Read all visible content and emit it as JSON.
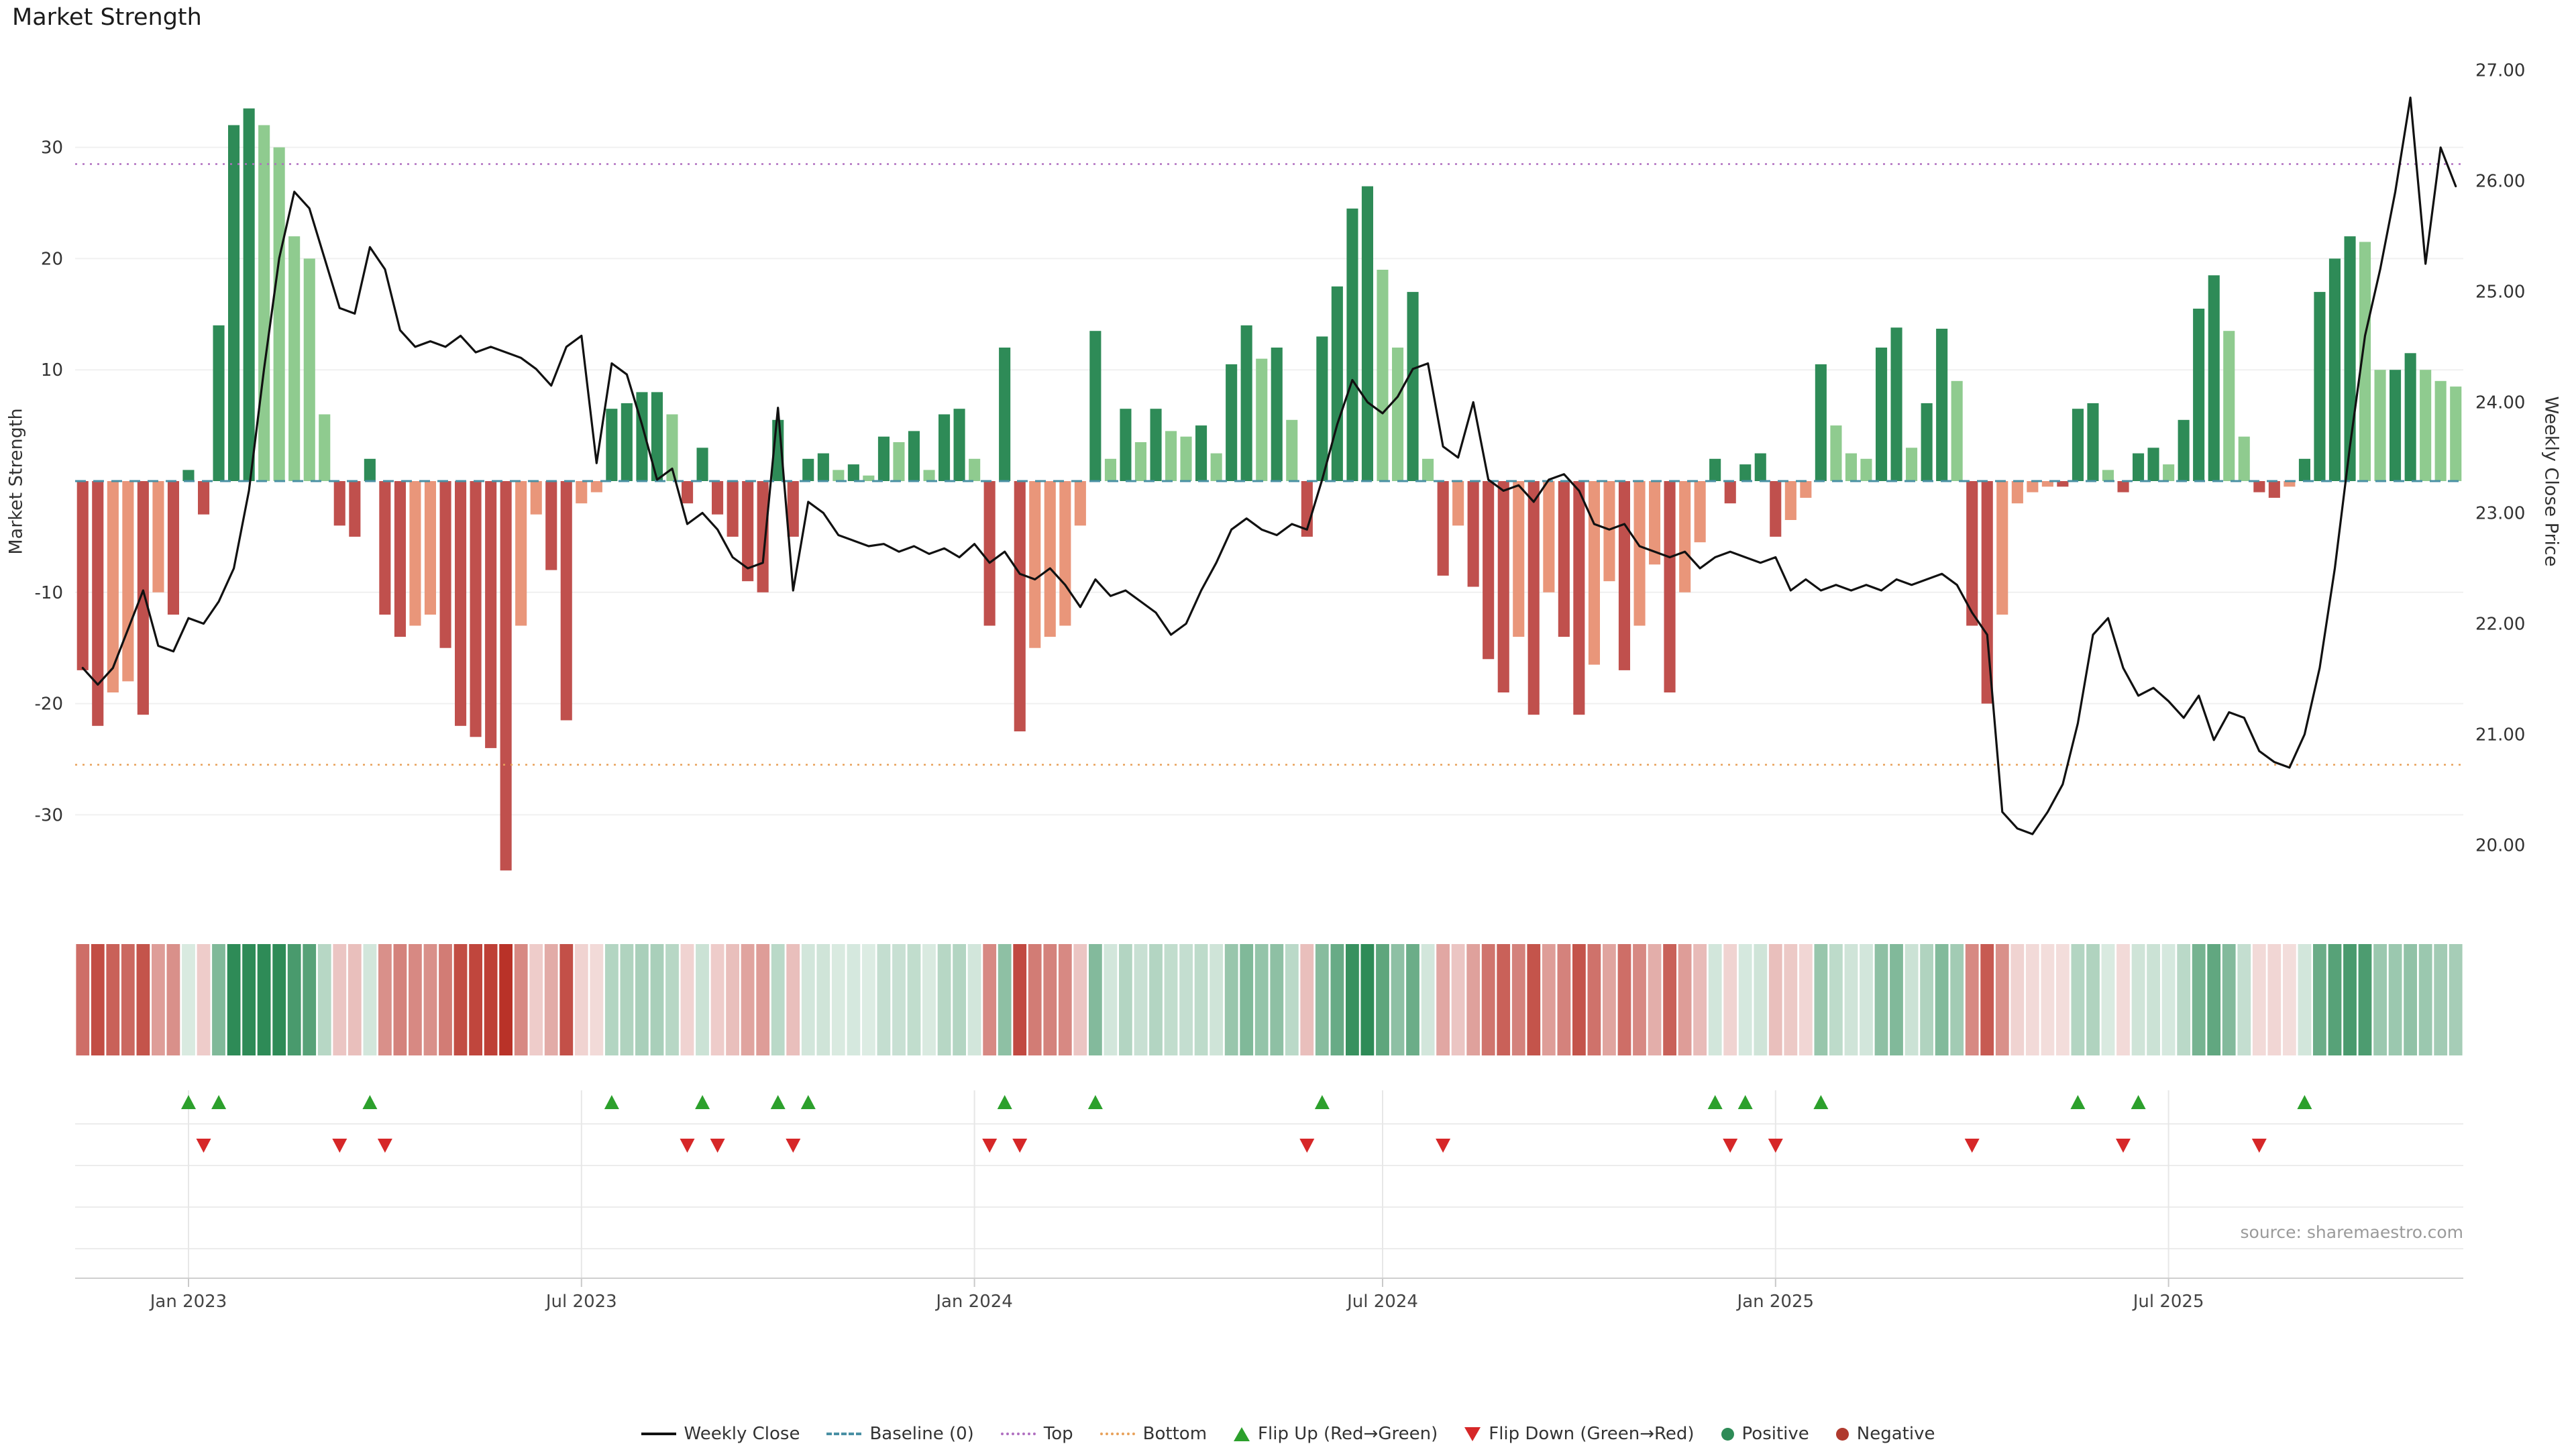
{
  "chart_data": {
    "type": "bar",
    "title": "Market Strength",
    "source_note": "source: sharemaestro.com",
    "left_axis": {
      "label": "Market Strength",
      "ticks": [
        30,
        20,
        10,
        -10,
        -20,
        -30
      ],
      "range": [
        -38.3,
        38.3
      ]
    },
    "right_axis": {
      "label": "Weekly Close Price",
      "ticks": [
        27.0,
        26.0,
        25.0,
        24.0,
        23.0,
        22.0,
        21.0,
        20.0
      ],
      "range": [
        19.44,
        27.135
      ]
    },
    "thresholds": {
      "top": 28.5,
      "baseline": 0,
      "bottom": -25.5
    },
    "x_ticks": [
      {
        "label": "Jan 2023",
        "index": 7
      },
      {
        "label": "Jul 2023",
        "index": 33
      },
      {
        "label": "Jan 2024",
        "index": 59
      },
      {
        "label": "Jul 2024",
        "index": 86
      },
      {
        "label": "Jan 2025",
        "index": 112
      },
      {
        "label": "Jul 2025",
        "index": 138
      }
    ],
    "bars": {
      "name": "Market Strength",
      "values": [
        -17,
        -22,
        -19,
        -18,
        -21,
        -10,
        -12,
        1,
        -3,
        14,
        32,
        33.5,
        32,
        30,
        22,
        20,
        6,
        -4,
        -5,
        2,
        -12,
        -14,
        -13,
        -12,
        -15,
        -22,
        -23,
        -24,
        -35,
        -13,
        -3,
        -8,
        -21.5,
        -2,
        -1,
        6.5,
        7,
        8,
        8,
        6,
        -2,
        3,
        -3,
        -5,
        -9,
        -10,
        5.5,
        -5,
        2,
        2.5,
        1,
        1.5,
        0.5,
        4,
        3.5,
        4.5,
        1,
        6,
        6.5,
        2,
        -13,
        12,
        -22.5,
        -15,
        -14,
        -13,
        -4,
        13.5,
        2,
        6.5,
        3.5,
        6.5,
        4.5,
        4,
        5,
        2.5,
        10.5,
        14,
        11,
        12,
        5.5,
        -5,
        13,
        17.5,
        24.5,
        26.5,
        19,
        12,
        17,
        2,
        -8.5,
        -4,
        -9.5,
        -16,
        -19,
        -14,
        -21,
        -10,
        -14,
        -21,
        -16.5,
        -9,
        -17,
        -13,
        -7.5,
        -19,
        -10,
        -5.5,
        2,
        -2,
        1.5,
        2.5,
        -5,
        -3.5,
        -1.5,
        10.5,
        5,
        2.5,
        2,
        12,
        13.8,
        3,
        7,
        13.7,
        9,
        -13,
        -20,
        -12,
        -2,
        -1,
        -0.5,
        -0.5,
        6.5,
        7,
        1,
        -1,
        2.5,
        3,
        1.5,
        5.5,
        15.5,
        18.5,
        13.5,
        4,
        -1,
        -1.5,
        -0.5,
        2,
        17,
        20,
        22,
        21.5,
        10,
        10,
        11.5,
        10,
        9,
        8.5
      ]
    },
    "line": {
      "name": "Weekly Close",
      "values": [
        21.6,
        21.45,
        21.6,
        21.95,
        22.3,
        21.8,
        21.75,
        22.05,
        22.0,
        22.2,
        22.5,
        23.2,
        24.3,
        25.3,
        25.9,
        25.75,
        25.3,
        24.85,
        24.8,
        25.4,
        25.2,
        24.65,
        24.5,
        24.55,
        24.5,
        24.6,
        24.45,
        24.5,
        24.45,
        24.4,
        24.3,
        24.15,
        24.5,
        24.6,
        23.45,
        24.35,
        24.25,
        23.8,
        23.3,
        23.4,
        22.9,
        23.0,
        22.85,
        22.6,
        22.5,
        22.55,
        23.95,
        22.3,
        23.1,
        23.0,
        22.8,
        22.75,
        22.7,
        22.72,
        22.65,
        22.7,
        22.63,
        22.68,
        22.6,
        22.72,
        22.55,
        22.65,
        22.45,
        22.4,
        22.5,
        22.35,
        22.15,
        22.4,
        22.25,
        22.3,
        22.2,
        22.1,
        21.9,
        22.0,
        22.3,
        22.55,
        22.85,
        22.95,
        22.85,
        22.8,
        22.9,
        22.85,
        23.3,
        23.8,
        24.2,
        24.0,
        23.9,
        24.05,
        24.3,
        24.35,
        23.6,
        23.5,
        24.0,
        23.3,
        23.2,
        23.25,
        23.1,
        23.3,
        23.35,
        23.2,
        22.9,
        22.85,
        22.9,
        22.7,
        22.65,
        22.6,
        22.65,
        22.5,
        22.6,
        22.65,
        22.6,
        22.55,
        22.6,
        22.3,
        22.4,
        22.3,
        22.35,
        22.3,
        22.35,
        22.3,
        22.4,
        22.35,
        22.4,
        22.45,
        22.35,
        22.1,
        21.9,
        20.3,
        20.15,
        20.1,
        20.3,
        20.55,
        21.1,
        21.9,
        22.05,
        21.6,
        21.35,
        21.42,
        21.3,
        21.15,
        21.35,
        20.95,
        21.2,
        21.15,
        20.85,
        20.75,
        20.7,
        21.0,
        21.6,
        22.5,
        23.6,
        24.6,
        25.2,
        25.9,
        26.75,
        25.25,
        26.3,
        25.95
      ]
    },
    "legend": [
      {
        "label": "Weekly Close"
      },
      {
        "label": "Baseline (0)"
      },
      {
        "label": "Top"
      },
      {
        "label": "Bottom"
      },
      {
        "label": "Flip Up (Red→Green)"
      },
      {
        "label": "Flip Down (Green→Red)"
      },
      {
        "label": "Positive"
      },
      {
        "label": "Negative"
      }
    ],
    "colors": {
      "positive_dark": "#2e8b57",
      "positive_light": "#8fcb8f",
      "negative_dark": "#c0504d",
      "negative_light": "#e9967a",
      "line": "#111111",
      "baseline": "#4a90a4",
      "top": "#b06fc0",
      "bottom": "#e8a15a",
      "flip_up": "#2ca02c",
      "flip_down": "#d62728"
    }
  }
}
